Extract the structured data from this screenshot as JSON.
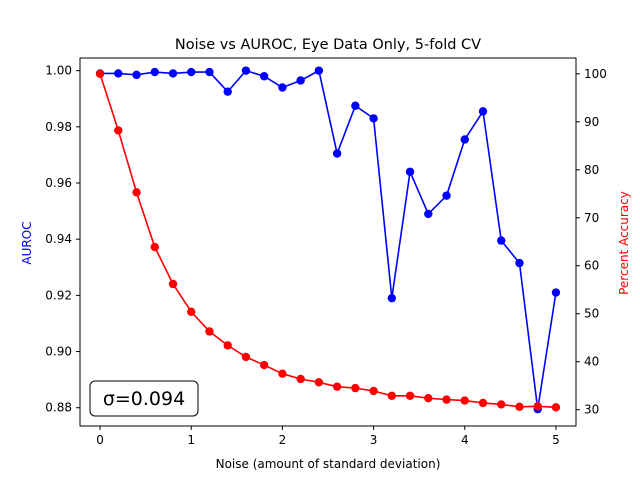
{
  "chart_data": {
    "type": "line",
    "title": "Noise vs AUROC, Eye Data Only, 5-fold CV",
    "xlabel": "Noise (amount of standard deviation)",
    "ylabel_left": "AUROC",
    "ylabel_right": "Percent Accuracy",
    "xlim": [
      -0.22,
      5.22
    ],
    "ylim_left": [
      0.8735,
      1.0045
    ],
    "ylim_right": [
      26.6,
      103.3
    ],
    "x_ticks": [
      0,
      1,
      2,
      3,
      4,
      5
    ],
    "y_ticks_left": [
      0.88,
      0.9,
      0.92,
      0.94,
      0.96,
      0.98,
      1.0
    ],
    "y_ticks_left_labels": [
      "0.88",
      "0.90",
      "0.92",
      "0.94",
      "0.96",
      "0.98",
      "1.00"
    ],
    "y_ticks_right": [
      30,
      40,
      50,
      60,
      70,
      80,
      90,
      100
    ],
    "grid": false,
    "x": [
      0,
      0.2,
      0.4,
      0.6,
      0.8,
      1.0,
      1.2,
      1.4,
      1.6,
      1.8,
      2.0,
      2.2,
      2.4,
      2.6,
      2.8,
      3.0,
      3.2,
      3.4,
      3.6,
      3.8,
      4.0,
      4.2,
      4.4,
      4.6,
      4.8,
      5.0
    ],
    "series": [
      {
        "axis": "left",
        "color": "#0000ff",
        "values": [
          0.999,
          0.999,
          0.9985,
          0.9995,
          0.999,
          0.9995,
          0.9995,
          0.9925,
          1.0,
          0.998,
          0.994,
          0.9965,
          1.0,
          0.9705,
          0.9875,
          0.983,
          0.919,
          0.964,
          0.949,
          0.9555,
          0.9755,
          0.9855,
          0.9395,
          0.9315,
          0.8795,
          0.921
        ]
      },
      {
        "axis": "right",
        "color": "#ff0000",
        "values": [
          100,
          88.2,
          75.3,
          63.9,
          56.2,
          50.4,
          46.3,
          43.4,
          41.0,
          39.3,
          37.5,
          36.4,
          35.7,
          34.8,
          34.5,
          33.9,
          32.9,
          32.9,
          32.4,
          32.1,
          31.9,
          31.4,
          31.1,
          30.6,
          30.7,
          30.5
        ]
      }
    ],
    "annotation": "σ=0.094"
  }
}
